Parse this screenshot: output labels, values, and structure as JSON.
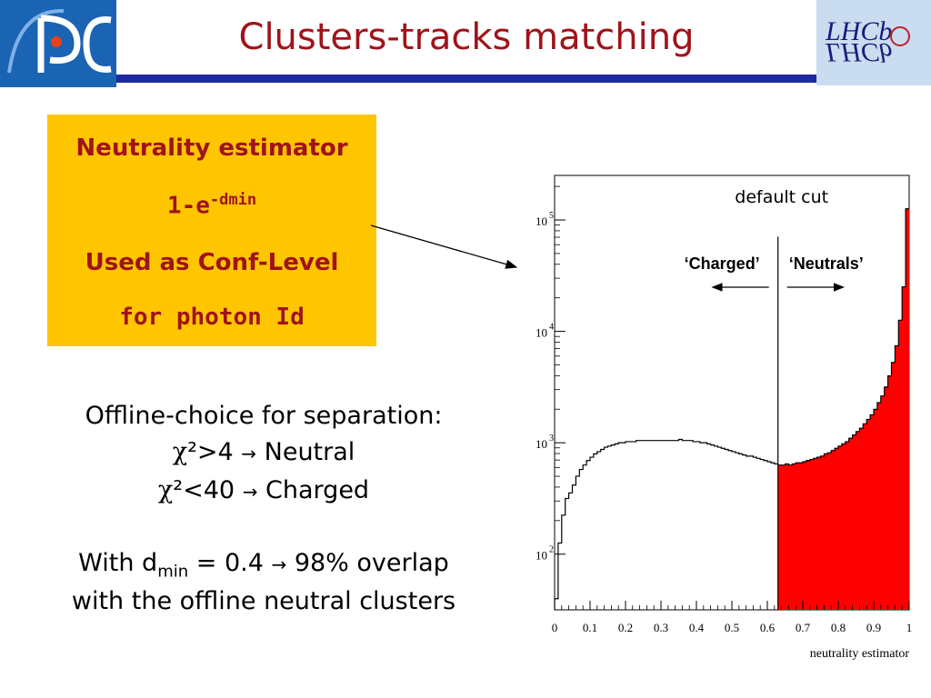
{
  "title": "Clusters-tracks matching",
  "logos": {
    "left_alt": "IPC logo",
    "right_text": "LHCb"
  },
  "estimator_box": {
    "line1": "Neutrality estimator",
    "formula_base": "1-e",
    "formula_exp": "-dmin",
    "line3": "Used as Conf-Level",
    "line4": "for photon Id"
  },
  "offline": {
    "line1": "Offline-choice for separation:",
    "chi1_sym": "χ",
    "chi1_rest": "²>4",
    "chi1_arrow": "→",
    "chi1_label": "Neutral",
    "chi2_sym": "χ",
    "chi2_rest": "²<40",
    "chi2_arrow": "→",
    "chi2_label": "Charged"
  },
  "overlap": {
    "with_text": "With  d",
    "subscript": "min",
    "value_text": " = 0.4 ",
    "arrow": "→",
    "result": " 98% overlap",
    "line2": "with the offline neutral clusters"
  },
  "colors": {
    "title": "#a0131a",
    "rule": "#1e2aa0",
    "box": "#ffc600",
    "neutral_fill": "#ff0000"
  },
  "chart_data": {
    "type": "histogram",
    "xlabel": "neutrality estimator",
    "xlim": [
      0,
      1
    ],
    "ylim_log10": [
      1.5,
      5.4
    ],
    "y_scale": "log",
    "x_ticks": [
      "0",
      "0.1",
      "0.2",
      "0.3",
      "0.4",
      "0.5",
      "0.6",
      "0.7",
      "0.8",
      "0.9",
      "1"
    ],
    "y_ticks": [
      {
        "base": "10",
        "exp": "2",
        "log10": 2
      },
      {
        "base": "10",
        "exp": "3",
        "log10": 3
      },
      {
        "base": "10",
        "exp": "4",
        "log10": 4
      },
      {
        "base": "10",
        "exp": "5",
        "log10": 5
      }
    ],
    "cut_value": 0.63,
    "cut_label": "default cut",
    "region_left_label": "‘Charged’",
    "region_right_label": "‘Neutrals’",
    "bins": 100,
    "log10_counts": [
      1.6,
      2.1,
      2.35,
      2.5,
      2.55,
      2.62,
      2.7,
      2.76,
      2.8,
      2.84,
      2.87,
      2.9,
      2.92,
      2.94,
      2.96,
      2.97,
      2.98,
      2.99,
      3.0,
      3.0,
      3.01,
      3.01,
      3.01,
      3.02,
      3.02,
      3.02,
      3.02,
      3.02,
      3.02,
      3.02,
      3.02,
      3.02,
      3.02,
      3.02,
      3.02,
      3.03,
      3.02,
      3.02,
      3.02,
      3.01,
      3.01,
      3.0,
      3.0,
      2.99,
      2.98,
      2.97,
      2.96,
      2.95,
      2.94,
      2.93,
      2.92,
      2.91,
      2.9,
      2.89,
      2.88,
      2.88,
      2.87,
      2.86,
      2.85,
      2.84,
      2.83,
      2.82,
      2.81,
      2.8,
      2.8,
      2.81,
      2.8,
      2.81,
      2.82,
      2.82,
      2.83,
      2.84,
      2.85,
      2.86,
      2.87,
      2.88,
      2.9,
      2.91,
      2.93,
      2.95,
      2.97,
      2.99,
      3.01,
      3.04,
      3.07,
      3.1,
      3.13,
      3.17,
      3.21,
      3.25,
      3.3,
      3.36,
      3.42,
      3.5,
      3.6,
      3.72,
      3.87,
      4.1,
      4.4,
      5.1
    ]
  }
}
